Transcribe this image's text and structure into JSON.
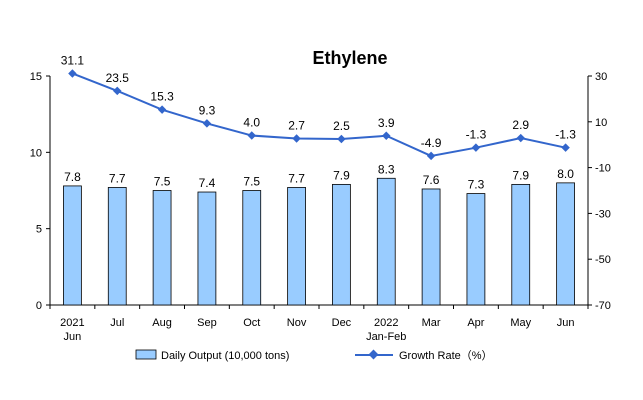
{
  "chart_data": {
    "type": "bar+line",
    "title": "Ethylene",
    "categories": [
      [
        "2021",
        "Jun"
      ],
      [
        "Jul"
      ],
      [
        "Aug"
      ],
      [
        "Sep"
      ],
      [
        "Oct"
      ],
      [
        "Nov"
      ],
      [
        "Dec"
      ],
      [
        "2022",
        "Jan-Feb"
      ],
      [
        "Mar"
      ],
      [
        "Apr"
      ],
      [
        "May"
      ],
      [
        "Jun"
      ]
    ],
    "series": [
      {
        "name": "Daily Output (10,000 tons)",
        "type": "bar",
        "axis": "left",
        "values": [
          7.8,
          7.7,
          7.5,
          7.4,
          7.5,
          7.7,
          7.9,
          8.3,
          7.6,
          7.3,
          7.9,
          8.0
        ],
        "labels": [
          "7.8",
          "7.7",
          "7.5",
          "7.4",
          "7.5",
          "7.7",
          "7.9",
          "8.3",
          "7.6",
          "7.3",
          "7.9",
          "8.0"
        ],
        "color": "#99ccff"
      },
      {
        "name": "Growth Rate（%）",
        "type": "line",
        "axis": "right",
        "values": [
          31.1,
          23.5,
          15.3,
          9.3,
          4.0,
          2.7,
          2.5,
          3.9,
          -4.9,
          -1.3,
          2.9,
          -1.3
        ],
        "labels": [
          "31.1",
          "23.5",
          "15.3",
          "9.3",
          "4.0",
          "2.7",
          "2.5",
          "3.9",
          "-4.9",
          "-1.3",
          "2.9",
          "-1.3"
        ],
        "color": "#3366cc"
      }
    ],
    "y_left": {
      "min": 0,
      "max": 15,
      "ticks": [
        "0",
        "5",
        "10",
        "15"
      ]
    },
    "y_right": {
      "min": -70,
      "max": 30,
      "ticks": [
        "30",
        "10",
        "-10",
        "-30",
        "-50",
        "-70"
      ]
    },
    "grid": false,
    "legend_position": "bottom"
  }
}
